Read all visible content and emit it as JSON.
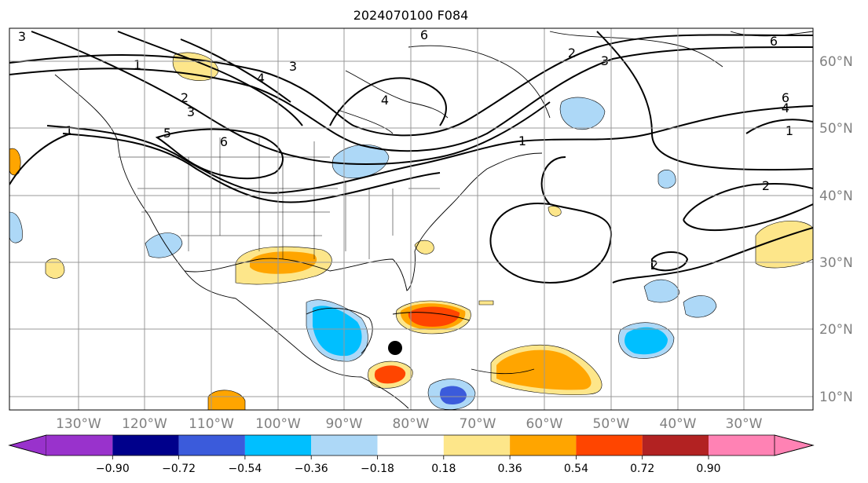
{
  "title": "2024070100 F084",
  "axes": {
    "lon_labels": [
      "130°W",
      "120°W",
      "110°W",
      "100°W",
      "90°W",
      "80°W",
      "70°W",
      "60°W",
      "50°W",
      "40°W",
      "30°W"
    ],
    "lat_labels": [
      "60°N",
      "50°N",
      "40°N",
      "30°N",
      "20°N",
      "10°N"
    ],
    "lon_range": [
      -140,
      -20
    ],
    "lat_range": [
      8,
      65
    ]
  },
  "contour_labels": [
    {
      "text": "3"
    },
    {
      "text": "1"
    },
    {
      "text": "2"
    },
    {
      "text": "3"
    },
    {
      "text": "1"
    },
    {
      "text": "4"
    },
    {
      "text": "3"
    },
    {
      "text": "6"
    },
    {
      "text": "5"
    },
    {
      "text": "4"
    },
    {
      "text": "6"
    },
    {
      "text": "2"
    },
    {
      "text": "3"
    },
    {
      "text": "1"
    },
    {
      "text": "6"
    },
    {
      "text": "6"
    },
    {
      "text": "4"
    },
    {
      "text": "1"
    },
    {
      "text": "2"
    },
    {
      "text": "2"
    }
  ],
  "colorbar": {
    "tick_labels": [
      "−0.90",
      "−0.72",
      "−0.54",
      "−0.36",
      "−0.18",
      "0.18",
      "0.36",
      "0.54",
      "0.72",
      "0.90"
    ],
    "colors": [
      "#9932cc",
      "#00008b",
      "#3b5bdb",
      "#00bfff",
      "#add8f7",
      "#ffffff",
      "#fde68a",
      "#ffa500",
      "#ff4500",
      "#b22222",
      "#ff82b4"
    ]
  },
  "marker": {
    "label": "storm-center",
    "lon": -80,
    "lat": 17
  }
}
